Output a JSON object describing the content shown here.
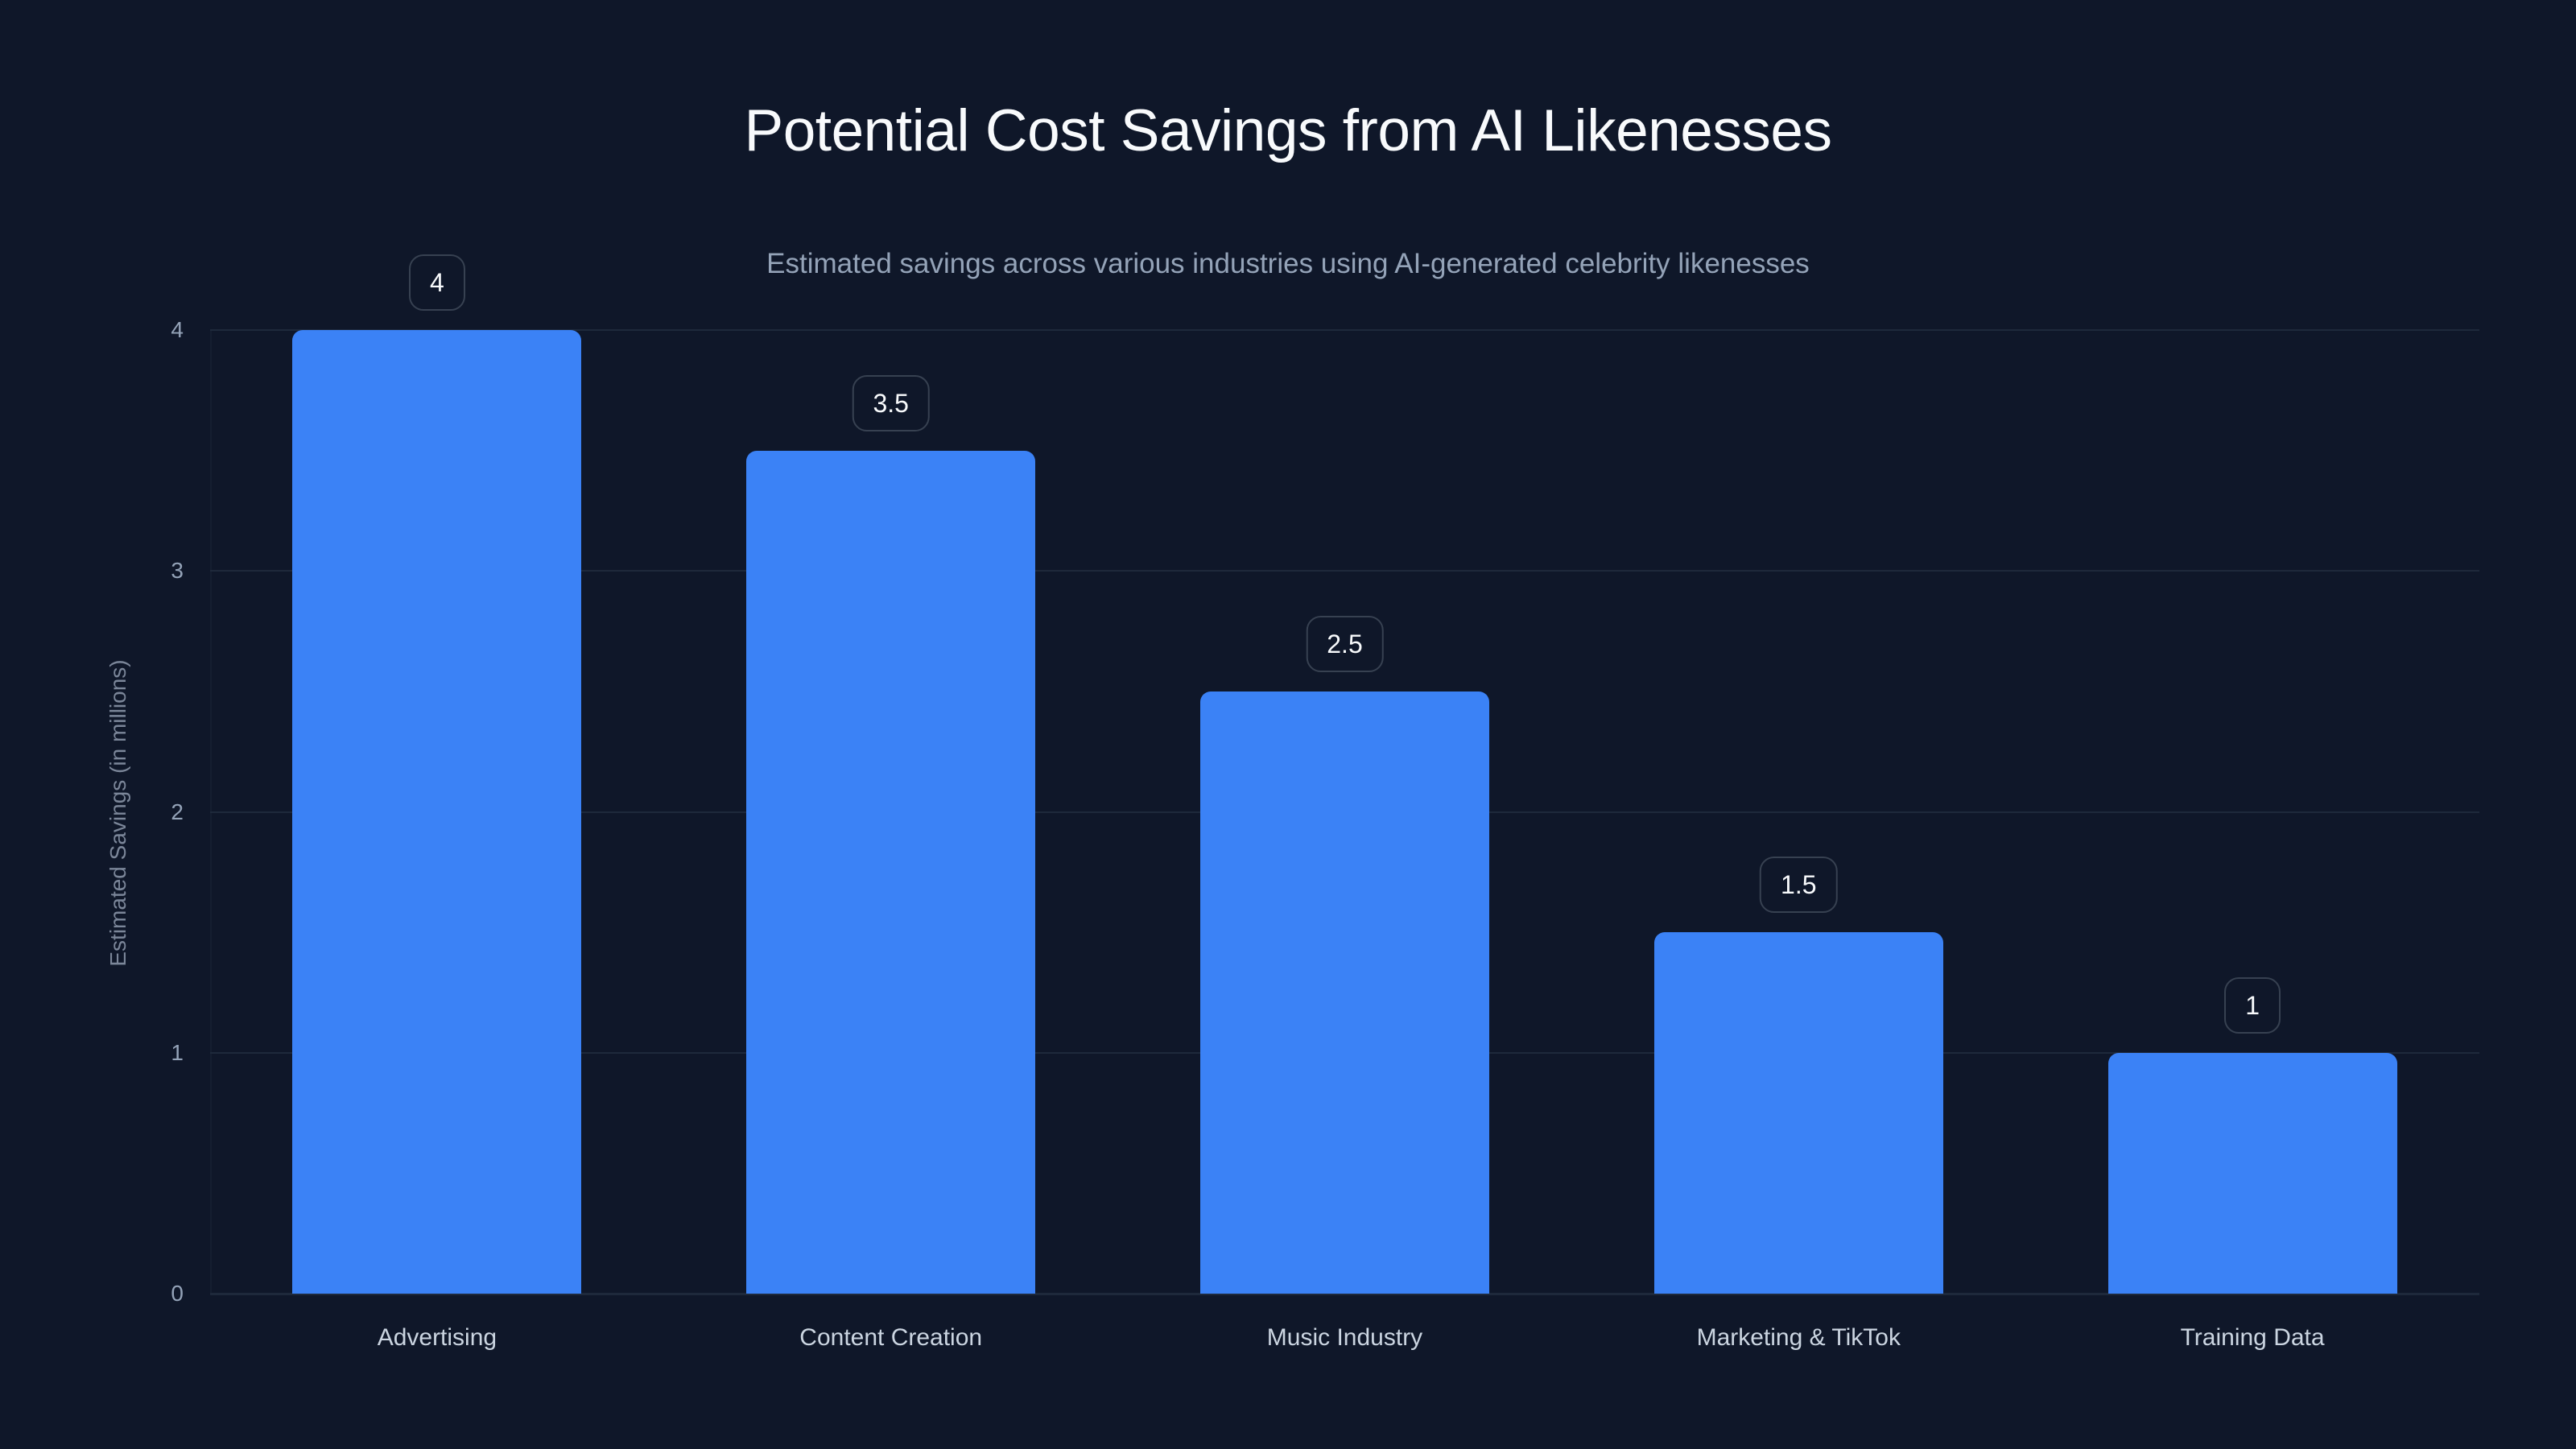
{
  "header": {
    "title": "Potential Cost Savings from AI Likenesses",
    "subtitle": "Estimated savings across various industries using AI-generated celebrity likenesses"
  },
  "axes": {
    "y_label": "Estimated Savings (in millions)",
    "y_ticks": [
      "0",
      "1",
      "2",
      "3",
      "4"
    ]
  },
  "colors": {
    "background": "#0f1729",
    "bar": "#3b82f6",
    "gridline": "#1e293b",
    "title": "#f8fafc",
    "subtitle": "#94a3b8"
  },
  "bars": [
    {
      "category": "Advertising",
      "value_label": "4"
    },
    {
      "category": "Content Creation",
      "value_label": "3.5"
    },
    {
      "category": "Music Industry",
      "value_label": "2.5"
    },
    {
      "category": "Marketing & TikTok",
      "value_label": "1.5"
    },
    {
      "category": "Training Data",
      "value_label": "1"
    }
  ],
  "chart_data": {
    "type": "bar",
    "title": "Potential Cost Savings from AI Likenesses",
    "subtitle": "Estimated savings across various industries using AI-generated celebrity likenesses",
    "categories": [
      "Advertising",
      "Content Creation",
      "Music Industry",
      "Marketing & TikTok",
      "Training Data"
    ],
    "values": [
      4,
      3.5,
      2.5,
      1.5,
      1
    ],
    "xlabel": "",
    "ylabel": "Estimated Savings (in millions)",
    "ylim": [
      0,
      4
    ],
    "yticks": [
      0,
      1,
      2,
      3,
      4
    ],
    "grid": true,
    "legend": false,
    "data_labels": true
  }
}
